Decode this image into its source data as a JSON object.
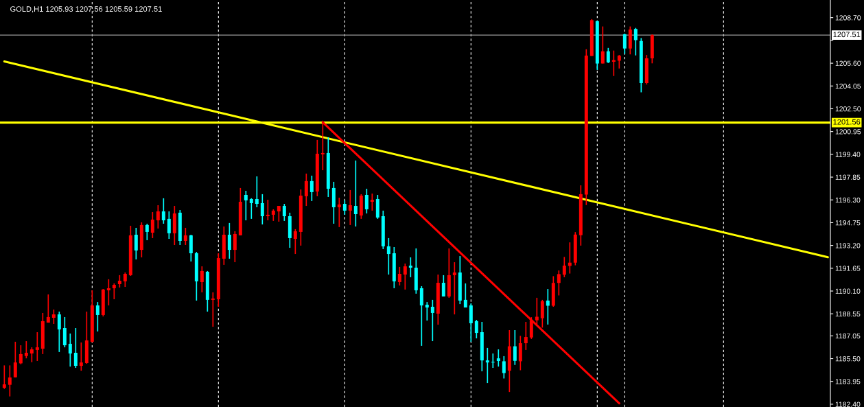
{
  "chart_data": {
    "type": "candlestick",
    "title": "GOLD,H1 1205.93 1207.56 1205.59 1207.51",
    "categories": [
      null,
      null,
      null,
      null,
      null,
      null,
      null,
      null,
      null,
      null,
      null,
      null,
      null,
      null,
      null,
      null,
      null,
      null,
      null,
      null,
      null,
      null,
      null,
      null,
      null,
      null,
      null,
      null,
      null,
      null,
      null,
      null,
      null,
      null,
      null,
      null,
      null,
      null,
      null,
      null,
      null,
      null,
      null,
      null,
      null,
      null,
      null,
      null,
      null,
      null,
      null,
      null,
      null,
      null,
      null,
      null,
      null,
      null,
      null,
      null,
      null,
      null,
      null,
      null,
      null,
      null,
      null,
      null,
      null,
      null,
      null,
      null,
      null,
      null,
      null,
      null,
      null,
      null,
      null,
      null,
      null,
      null,
      null,
      null,
      null,
      null,
      null,
      null,
      null,
      null,
      null,
      null,
      null,
      null,
      null,
      null,
      null,
      null,
      null,
      null,
      null,
      null,
      null,
      null,
      null,
      null,
      null,
      null,
      null,
      null,
      null,
      null,
      null,
      null,
      null,
      null,
      null,
      null,
      null,
      null,
      null,
      null,
      null,
      null,
      null,
      null,
      null,
      null,
      null,
      null,
      null,
      null,
      null,
      null,
      null,
      null,
      null,
      null,
      null,
      null,
      null,
      null,
      null,
      null,
      null,
      null,
      null,
      null,
      null,
      null,
      null
    ],
    "ohlc": [
      [
        1183.52,
        1185.04,
        1183.44,
        1183.75
      ],
      [
        1183.72,
        1185.04,
        1182.93,
        1184.22
      ],
      [
        1184.23,
        1186.65,
        1184.23,
        1185.24
      ],
      [
        1185.18,
        1186.41,
        1185.12,
        1185.81
      ],
      [
        1185.68,
        1186.69,
        1185.52,
        1185.9
      ],
      [
        1185.85,
        1186.27,
        1185.26,
        1186.13
      ],
      [
        1186.09,
        1187.3,
        1185.34,
        1186.27
      ],
      [
        1186.18,
        1188.61,
        1185.81,
        1188.05
      ],
      [
        1187.95,
        1189.87,
        1187.95,
        1188.33
      ],
      [
        1188.28,
        1188.84,
        1187.86,
        1188.51
      ],
      [
        1188.51,
        1188.7,
        1185.95,
        1187.49
      ],
      [
        1187.58,
        1188.33,
        1186.27,
        1186.41
      ],
      [
        1186.51,
        1187.21,
        1184.96,
        1185.85
      ],
      [
        1185.9,
        1187.58,
        1184.87,
        1185.01
      ],
      [
        1185.01,
        1186.6,
        1184.68,
        1185.24
      ],
      [
        1185.2,
        1188.7,
        1185.15,
        1186.74
      ],
      [
        1186.65,
        1190.15,
        1186.6,
        1189.12
      ],
      [
        1189.12,
        1189.35,
        1187.35,
        1188.47
      ],
      [
        1188.47,
        1190.24,
        1188.37,
        1190.2
      ],
      [
        1190.15,
        1190.9,
        1189.12,
        1190.29
      ],
      [
        1190.29,
        1190.62,
        1189.54,
        1190.52
      ],
      [
        1190.57,
        1191.18,
        1190.34,
        1190.8
      ],
      [
        1190.76,
        1191.36,
        1190.38,
        1191.27
      ],
      [
        1191.18,
        1194.54,
        1191.13,
        1193.89
      ],
      [
        1193.93,
        1194.4,
        1192.25,
        1192.86
      ],
      [
        1192.9,
        1194.77,
        1192.39,
        1194.59
      ],
      [
        1194.59,
        1194.68,
        1193.56,
        1194.12
      ],
      [
        1194.07,
        1195.47,
        1193.7,
        1194.96
      ],
      [
        1194.91,
        1195.94,
        1194.35,
        1195.52
      ],
      [
        1195.52,
        1196.41,
        1194.68,
        1194.91
      ],
      [
        1195.01,
        1195.52,
        1193.65,
        1194.03
      ],
      [
        1194.03,
        1195.89,
        1193.23,
        1195.38
      ],
      [
        1195.43,
        1195.61,
        1193.23,
        1193.51
      ],
      [
        1193.51,
        1194.4,
        1193.23,
        1193.89
      ],
      [
        1193.89,
        1193.93,
        1192.11,
        1192.67
      ],
      [
        1192.67,
        1192.76,
        1189.45,
        1190.76
      ],
      [
        1190.71,
        1191.78,
        1190.01,
        1191.46
      ],
      [
        1191.41,
        1191.46,
        1188.7,
        1189.5
      ],
      [
        1189.5,
        1190.01,
        1187.67,
        1189.59
      ],
      [
        1189.54,
        1192.67,
        1189.03,
        1192.34
      ],
      [
        1192.3,
        1194.49,
        1191.88,
        1193.93
      ],
      [
        1193.93,
        1194.73,
        1192.3,
        1192.9
      ],
      [
        1192.9,
        1194.17,
        1192.06,
        1193.98
      ],
      [
        1193.89,
        1197.11,
        1193.89,
        1196.17
      ],
      [
        1196.64,
        1196.92,
        1194.91,
        1196.27
      ],
      [
        1196.36,
        1196.41,
        1195.01,
        1196.08
      ],
      [
        1196.36,
        1197.9,
        1195.8,
        1196.03
      ],
      [
        1196.08,
        1196.69,
        1194.63,
        1195.19
      ],
      [
        1195.19,
        1196.31,
        1194.91,
        1195.29
      ],
      [
        1195.29,
        1195.66,
        1194.87,
        1195.57
      ],
      [
        1195.52,
        1195.89,
        1194.82,
        1195.89
      ],
      [
        1195.89,
        1196.03,
        1194.87,
        1195.19
      ],
      [
        1195.19,
        1195.43,
        1193.04,
        1193.7
      ],
      [
        1193.65,
        1194.31,
        1192.62,
        1194.17
      ],
      [
        1194.12,
        1197.01,
        1193.19,
        1196.59
      ],
      [
        1196.55,
        1198.09,
        1195.89,
        1197.58
      ],
      [
        1197.58,
        1197.95,
        1196.22,
        1196.83
      ],
      [
        1196.87,
        1200.38,
        1196.55,
        1199.44
      ],
      [
        1199.4,
        1201.69,
        1198.32,
        1199.49
      ],
      [
        1199.49,
        1200.56,
        1196.5,
        1197.06
      ],
      [
        1197.11,
        1197.53,
        1194.68,
        1195.8
      ],
      [
        1195.8,
        1196.45,
        1194.45,
        1195.99
      ],
      [
        1196.03,
        1196.27,
        1195.29,
        1195.57
      ],
      [
        1195.57,
        1196.97,
        1194.59,
        1195.94
      ],
      [
        1195.89,
        1198.98,
        1194.49,
        1195.33
      ],
      [
        1195.24,
        1196.69,
        1195.01,
        1196.59
      ],
      [
        1196.64,
        1197.06,
        1195.38,
        1195.66
      ],
      [
        1196.17,
        1196.73,
        1195.57,
        1196.31
      ],
      [
        1196.36,
        1196.64,
        1195.01,
        1195.1
      ],
      [
        1195.19,
        1195.57,
        1192.95,
        1193.14
      ],
      [
        1193.14,
        1193.7,
        1191.22,
        1192.62
      ],
      [
        1192.67,
        1193.09,
        1190.29,
        1190.76
      ],
      [
        1190.71,
        1191.74,
        1190.48,
        1191.27
      ],
      [
        1191.22,
        1191.97,
        1190.2,
        1191.78
      ],
      [
        1191.83,
        1192.39,
        1191.04,
        1191.69
      ],
      [
        1191.69,
        1193.0,
        1189.92,
        1190.15
      ],
      [
        1190.29,
        1190.43,
        1186.37,
        1189.12
      ],
      [
        1189.17,
        1189.35,
        1188.09,
        1188.98
      ],
      [
        1189.03,
        1189.5,
        1186.69,
        1188.61
      ],
      [
        1188.56,
        1191.22,
        1187.81,
        1190.66
      ],
      [
        1190.66,
        1191.18,
        1189.73,
        1189.73
      ],
      [
        1189.73,
        1193.0,
        1189.64,
        1191.18
      ],
      [
        1191.18,
        1192.06,
        1188.51,
        1191.36
      ],
      [
        1191.36,
        1192.48,
        1189.21,
        1189.45
      ],
      [
        1189.5,
        1190.62,
        1188.98,
        1188.98
      ],
      [
        1189.12,
        1189.26,
        1186.65,
        1187.91
      ],
      [
        1188.05,
        1188.14,
        1186.88,
        1187.25
      ],
      [
        1187.3,
        1188.0,
        1184.64,
        1185.38
      ],
      [
        1185.38,
        1186.23,
        1183.84,
        1185.24
      ],
      [
        1185.29,
        1185.85,
        1184.87,
        1185.24
      ],
      [
        1185.52,
        1186.13,
        1184.96,
        1185.34
      ],
      [
        1185.32,
        1185.67,
        1184.15,
        1184.52
      ],
      [
        1184.68,
        1187.44,
        1183.23,
        1186.34
      ],
      [
        1186.34,
        1187.44,
        1185.07,
        1185.35
      ],
      [
        1185.32,
        1187.05,
        1184.71,
        1186.55
      ],
      [
        1186.55,
        1188.0,
        1186.09,
        1186.97
      ],
      [
        1186.94,
        1188.32,
        1186.84,
        1188.11
      ],
      [
        1188.11,
        1189.64,
        1187.79,
        1188.35
      ],
      [
        1188.25,
        1189.5,
        1187.61,
        1189.41
      ],
      [
        1189.45,
        1190.24,
        1187.82,
        1189.1
      ],
      [
        1189.1,
        1191.11,
        1189.03,
        1190.65
      ],
      [
        1190.65,
        1191.5,
        1189.8,
        1191.25
      ],
      [
        1191.21,
        1192.42,
        1191.04,
        1191.83
      ],
      [
        1191.81,
        1193.41,
        1191.29,
        1192.03
      ],
      [
        1192.03,
        1194.11,
        1191.85,
        1193.94
      ],
      [
        1193.9,
        1197.29,
        1193.19,
        1196.69
      ],
      [
        1196.66,
        1206.55,
        1195.95,
        1206.12
      ],
      [
        1206.09,
        1208.6,
        1206.09,
        1208.53
      ],
      [
        1208.46,
        1208.49,
        1205.14,
        1205.58
      ],
      [
        1205.58,
        1208.1,
        1205.58,
        1206.41
      ],
      [
        1206.41,
        1206.64,
        1205.61,
        1205.66
      ],
      [
        1205.7,
        1206.46,
        1204.73,
        1205.81
      ],
      [
        1205.77,
        1206.16,
        1205.24,
        1206.11
      ],
      [
        1207.57,
        1207.61,
        1206.23,
        1206.6
      ],
      [
        1206.6,
        1208.1,
        1206.2,
        1207.89
      ],
      [
        1207.93,
        1208.0,
        1206.13,
        1207.17
      ],
      [
        1207.11,
        1207.31,
        1203.62,
        1204.25
      ],
      [
        1204.25,
        1206.16,
        1204.15,
        1205.93
      ],
      [
        1205.93,
        1207.56,
        1205.59,
        1207.51
      ],
      null,
      null,
      null,
      null,
      null,
      null,
      null,
      null,
      null,
      null,
      null,
      null,
      null,
      null,
      null,
      null,
      null,
      null,
      null,
      null,
      null,
      null,
      null,
      null,
      null,
      null,
      null,
      null,
      null,
      null,
      null,
      null
    ],
    "colors": [
      "#ff0000",
      "#ff0000",
      "#ff0000",
      "#ff0000",
      "#ff0000",
      "#ff0000",
      "#ff0000",
      "#ff0000",
      "#ff0000",
      "#ff0000",
      "#00ffff",
      "#00ffff",
      "#00ffff",
      "#00ffff",
      "#ff0000",
      "#ff0000",
      "#ff0000",
      "#00ffff",
      "#ff0000",
      "#ff0000",
      "#ff0000",
      "#ff0000",
      "#ff0000",
      "#ff0000",
      "#00ffff",
      "#ff0000",
      "#00ffff",
      "#ff0000",
      "#ff0000",
      "#00ffff",
      "#00ffff",
      "#ff0000",
      "#00ffff",
      "#ff0000",
      "#00ffff",
      "#00ffff",
      "#ff0000",
      "#00ffff",
      "#ff0000",
      "#ff0000",
      "#ff0000",
      "#00ffff",
      "#ff0000",
      "#ff0000",
      "#00ffff",
      "#00ffff",
      "#00ffff",
      "#00ffff",
      "#ff0000",
      "#ff0000",
      "#ff0000",
      "#00ffff",
      "#00ffff",
      "#ff0000",
      "#ff0000",
      "#ff0000",
      "#00ffff",
      "#ff0000",
      "#ff0000",
      "#00ffff",
      "#00ffff",
      "#ff0000",
      "#00ffff",
      "#ff0000",
      "#00ffff",
      "#ff0000",
      "#00ffff",
      "#ff0000",
      "#00ffff",
      "#00ffff",
      "#00ffff",
      "#00ffff",
      "#ff0000",
      "#ff0000",
      "#00ffff",
      "#00ffff",
      "#00ffff",
      "#00ffff",
      "#00ffff",
      "#ff0000",
      "#00ffff",
      "#ff0000",
      "#ff0000",
      "#00ffff",
      "#00ffff",
      "#00ffff",
      "#00ffff",
      "#00ffff",
      "#00ffff",
      "#00ffff",
      "#00ffff",
      "#00ffff",
      "#ff0000",
      "#00ffff",
      "#ff0000",
      "#ff0000",
      "#ff0000",
      "#ff0000",
      "#ff0000",
      "#00ffff",
      "#ff0000",
      "#ff0000",
      "#ff0000",
      "#ff0000",
      "#ff0000",
      "#ff0000",
      "#ff0000",
      "#ff0000",
      "#00ffff",
      "#ff0000",
      "#00ffff",
      "#ff0000",
      "#ff0000",
      "#00ffff",
      "#ff0000",
      "#00ffff",
      "#00ffff",
      "#ff0000",
      "#ff0000",
      null,
      null,
      null,
      null,
      null,
      null,
      null,
      null,
      null,
      null,
      null,
      null,
      null,
      null,
      null,
      null,
      null,
      null,
      null,
      null,
      null,
      null,
      null,
      null,
      null,
      null,
      null,
      null,
      null,
      null,
      null,
      null
    ],
    "series": [
      {
        "type": "line",
        "color": "#ffff00",
        "values": [
          1205.72,
          null,
          null,
          null,
          null,
          null,
          null,
          null,
          null,
          null,
          null,
          null,
          null,
          null,
          null,
          null,
          null,
          null,
          null,
          null,
          null,
          null,
          null,
          null,
          null,
          null,
          null,
          null,
          null,
          null,
          null,
          null,
          null,
          null,
          null,
          null,
          null,
          null,
          null,
          null,
          null,
          null,
          null,
          null,
          null,
          null,
          null,
          null,
          null,
          null,
          null,
          null,
          null,
          null,
          null,
          null,
          null,
          null,
          null,
          null,
          null,
          null,
          null,
          null,
          null,
          null,
          null,
          null,
          null,
          null,
          null,
          null,
          null,
          null,
          null,
          null,
          null,
          null,
          null,
          null,
          null,
          null,
          null,
          null,
          null,
          null,
          null,
          null,
          null,
          null,
          null,
          null,
          null,
          null,
          null,
          null,
          null,
          null,
          null,
          null,
          null,
          null,
          null,
          null,
          null,
          null,
          null,
          null,
          null,
          null,
          null,
          null,
          null,
          null,
          null,
          null,
          null,
          null,
          null,
          null,
          null,
          null,
          null,
          null,
          null,
          null,
          null,
          null,
          null,
          null,
          null,
          null,
          null,
          null,
          null,
          null,
          null,
          null,
          null,
          null,
          null,
          null,
          null,
          null,
          null,
          null,
          null,
          null,
          null,
          null,
          1192.4
        ]
      },
      {
        "type": "line",
        "color": "#ff0000",
        "values": [
          null,
          null,
          null,
          null,
          null,
          null,
          null,
          null,
          null,
          null,
          null,
          null,
          null,
          null,
          null,
          null,
          null,
          null,
          null,
          null,
          null,
          null,
          null,
          null,
          null,
          null,
          null,
          null,
          null,
          null,
          null,
          null,
          null,
          null,
          null,
          null,
          null,
          null,
          null,
          null,
          null,
          null,
          null,
          null,
          null,
          null,
          null,
          null,
          null,
          null,
          null,
          null,
          null,
          null,
          null,
          null,
          null,
          null,
          1201.58,
          null,
          null,
          null,
          null,
          null,
          null,
          null,
          null,
          null,
          null,
          null,
          null,
          null,
          null,
          null,
          null,
          null,
          null,
          null,
          null,
          null,
          null,
          null,
          null,
          null,
          null,
          null,
          null,
          null,
          null,
          null,
          null,
          null,
          null,
          null,
          null,
          null,
          null,
          null,
          null,
          null,
          null,
          null,
          null,
          null,
          null,
          null,
          null,
          null,
          null,
          null,
          null,
          null,
          1182.46,
          null,
          null,
          null,
          null,
          null,
          null,
          null,
          null,
          null,
          null,
          null,
          null,
          null,
          null,
          null,
          null,
          null,
          null,
          null,
          null,
          null,
          null,
          null,
          null,
          null,
          null,
          null,
          null,
          null,
          null,
          null,
          null,
          null,
          null,
          null,
          null,
          null,
          null
        ]
      }
    ],
    "ref_lines": [
      {
        "axis": "y",
        "value": 1201.56,
        "label": "1201.56",
        "color": "#ffff00"
      },
      {
        "axis": "y",
        "value": 1207.51,
        "label": "1207.51",
        "color": "#9a9a9a"
      }
    ],
    "ylim": [
      1182.21,
      1209.9
    ],
    "yticks": [
      {
        "value": 1208.7,
        "label": "1208.70"
      },
      {
        "value": 1207.15,
        "label": null
      },
      {
        "value": 1205.6,
        "label": "1205.60"
      },
      {
        "value": 1204.05,
        "label": "1204.05"
      },
      {
        "value": 1202.5,
        "label": "1202.50"
      },
      {
        "value": 1200.95,
        "label": "1200.95"
      },
      {
        "value": 1199.4,
        "label": "1199.40"
      },
      {
        "value": 1197.85,
        "label": "1197.85"
      },
      {
        "value": 1196.3,
        "label": "1196.30"
      },
      {
        "value": 1194.75,
        "label": "1194.75"
      },
      {
        "value": 1193.2,
        "label": "1193.20"
      },
      {
        "value": 1191.65,
        "label": "1191.65"
      },
      {
        "value": 1190.1,
        "label": "1190.10"
      },
      {
        "value": 1188.55,
        "label": "1188.55"
      },
      {
        "value": 1187.05,
        "label": "1187.05"
      },
      {
        "value": 1185.5,
        "label": "1185.50"
      },
      {
        "value": 1183.95,
        "label": "1183.95"
      },
      {
        "value": 1182.4,
        "label": "1182.40"
      }
    ]
  }
}
